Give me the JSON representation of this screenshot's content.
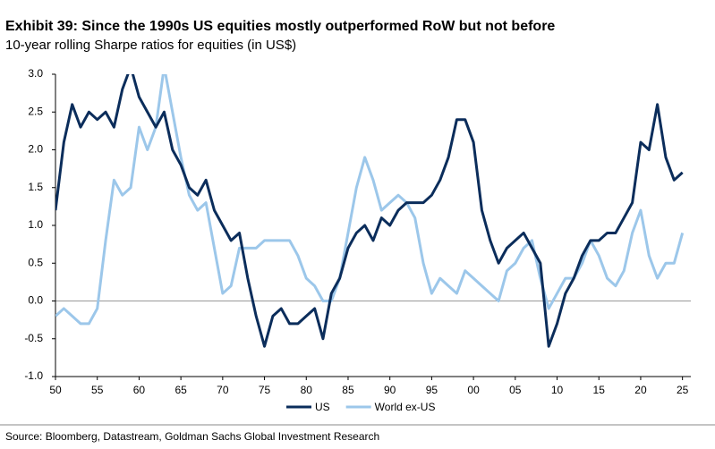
{
  "chart_data": {
    "type": "line",
    "title": "Exhibit 39: Since the 1990s US equities mostly outperformed RoW but not before",
    "subtitle": "10-year rolling Sharpe ratios for equities (in US$)",
    "source": "Source: Bloomberg, Datastream, Goldman Sachs Global Investment Research",
    "x": [
      1950,
      1951,
      1952,
      1953,
      1954,
      1955,
      1956,
      1957,
      1958,
      1959,
      1960,
      1961,
      1962,
      1963,
      1964,
      1965,
      1966,
      1967,
      1968,
      1969,
      1970,
      1971,
      1972,
      1973,
      1974,
      1975,
      1976,
      1977,
      1978,
      1979,
      1980,
      1981,
      1982,
      1983,
      1984,
      1985,
      1986,
      1987,
      1988,
      1989,
      1990,
      1991,
      1992,
      1993,
      1994,
      1995,
      1996,
      1997,
      1998,
      1999,
      2000,
      2001,
      2002,
      2003,
      2004,
      2005,
      2006,
      2007,
      2008,
      2009,
      2010,
      2011,
      2012,
      2013,
      2014,
      2015,
      2016,
      2017,
      2018,
      2019,
      2020,
      2021,
      2022,
      2023,
      2024,
      2025
    ],
    "series": [
      {
        "name": "US",
        "color": "#0b2d5b",
        "values": [
          1.2,
          2.1,
          2.6,
          2.3,
          2.5,
          2.4,
          2.5,
          2.3,
          2.8,
          3.1,
          2.7,
          2.5,
          2.3,
          2.5,
          2.0,
          1.8,
          1.5,
          1.4,
          1.6,
          1.2,
          1.0,
          0.8,
          0.9,
          0.3,
          -0.2,
          -0.6,
          -0.2,
          -0.1,
          -0.3,
          -0.3,
          -0.2,
          -0.1,
          -0.5,
          0.1,
          0.3,
          0.7,
          0.9,
          1.0,
          0.8,
          1.1,
          1.0,
          1.2,
          1.3,
          1.3,
          1.3,
          1.4,
          1.6,
          1.9,
          2.4,
          2.4,
          2.1,
          1.2,
          0.8,
          0.5,
          0.7,
          0.8,
          0.9,
          0.7,
          0.5,
          -0.6,
          -0.3,
          0.1,
          0.3,
          0.6,
          0.8,
          0.8,
          0.9,
          0.9,
          1.1,
          1.3,
          2.1,
          2.0,
          2.6,
          1.9,
          1.6,
          1.7
        ]
      },
      {
        "name": "World ex-US",
        "color": "#9cc7ea",
        "values": [
          -0.2,
          -0.1,
          -0.2,
          -0.3,
          -0.3,
          -0.1,
          0.8,
          1.6,
          1.4,
          1.5,
          2.3,
          2.0,
          2.3,
          3.1,
          2.5,
          1.9,
          1.4,
          1.2,
          1.3,
          0.7,
          0.1,
          0.2,
          0.7,
          0.7,
          0.7,
          0.8,
          0.8,
          0.8,
          0.8,
          0.6,
          0.3,
          0.2,
          0.0,
          0.0,
          0.3,
          0.9,
          1.5,
          1.9,
          1.6,
          1.2,
          1.3,
          1.4,
          1.3,
          1.1,
          0.5,
          0.1,
          0.3,
          0.2,
          0.1,
          0.4,
          0.3,
          0.2,
          0.1,
          0.0,
          0.4,
          0.5,
          0.7,
          0.8,
          0.3,
          -0.1,
          0.1,
          0.3,
          0.3,
          0.5,
          0.8,
          0.6,
          0.3,
          0.2,
          0.4,
          0.9,
          1.2,
          0.6,
          0.3,
          0.5,
          0.5,
          0.9
        ]
      }
    ],
    "xlim": [
      1950,
      2026
    ],
    "xticks": [
      {
        "value": 1950,
        "label": "50"
      },
      {
        "value": 1955,
        "label": "55"
      },
      {
        "value": 1960,
        "label": "60"
      },
      {
        "value": 1965,
        "label": "65"
      },
      {
        "value": 1970,
        "label": "70"
      },
      {
        "value": 1975,
        "label": "75"
      },
      {
        "value": 1980,
        "label": "80"
      },
      {
        "value": 1985,
        "label": "85"
      },
      {
        "value": 1990,
        "label": "90"
      },
      {
        "value": 1995,
        "label": "95"
      },
      {
        "value": 2000,
        "label": "00"
      },
      {
        "value": 2005,
        "label": "05"
      },
      {
        "value": 2010,
        "label": "10"
      },
      {
        "value": 2015,
        "label": "15"
      },
      {
        "value": 2020,
        "label": "20"
      },
      {
        "value": 2025,
        "label": "25"
      }
    ],
    "ylim": [
      -1,
      3
    ],
    "yticks": [
      {
        "value": 3,
        "label": "3.0"
      },
      2.5,
      {
        "value": 2,
        "label": "2.0"
      },
      1.5,
      {
        "value": 1,
        "label": "1.0"
      },
      0.5,
      {
        "value": 0,
        "label": "0.0"
      },
      -0.5,
      {
        "value": -1,
        "label": "-1.0"
      }
    ],
    "legend": "bottom"
  }
}
